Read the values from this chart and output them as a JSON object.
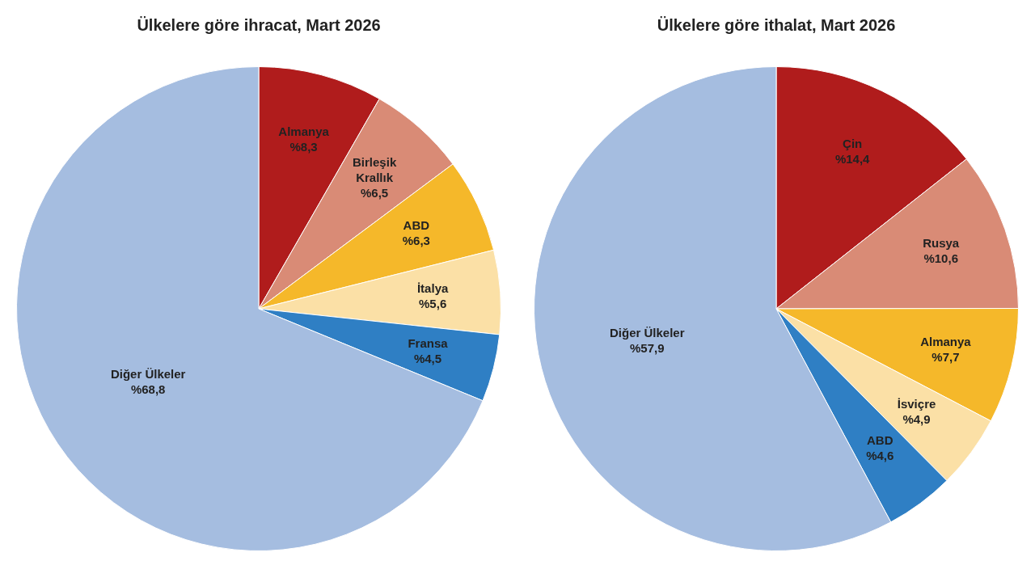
{
  "chart_data": [
    {
      "type": "pie",
      "title": "Ülkelere göre ihracat, Mart 2026",
      "categories": [
        "Almanya",
        "Birleşik Krallık",
        "ABD",
        "İtalya",
        "Fransa",
        "Diğer Ülkeler"
      ],
      "values": [
        8.3,
        6.5,
        6.3,
        5.6,
        4.5,
        68.8
      ],
      "value_labels": [
        "%8,3",
        "%6,5",
        "%6,3",
        "%5,6",
        "%4,5",
        "%68,8"
      ],
      "colors": [
        "#b01c1c",
        "#d98b76",
        "#f5b82a",
        "#fbe0a6",
        "#2f7fc4",
        "#a5bde0"
      ],
      "legend": false
    },
    {
      "type": "pie",
      "title": "Ülkelere göre ithalat, Mart 2026",
      "categories": [
        "Çin",
        "Rusya",
        "Almanya",
        "İsviçre",
        "ABD",
        "Diğer Ülkeler"
      ],
      "values": [
        14.4,
        10.6,
        7.7,
        4.9,
        4.6,
        57.9
      ],
      "value_labels": [
        "%14,4",
        "%10,6",
        "%7,7",
        "%4,9",
        "%4,6",
        "%57,9"
      ],
      "colors": [
        "#b01c1c",
        "#d98b76",
        "#f5b82a",
        "#fbe0a6",
        "#2f7fc4",
        "#a5bde0"
      ],
      "legend": false
    }
  ]
}
